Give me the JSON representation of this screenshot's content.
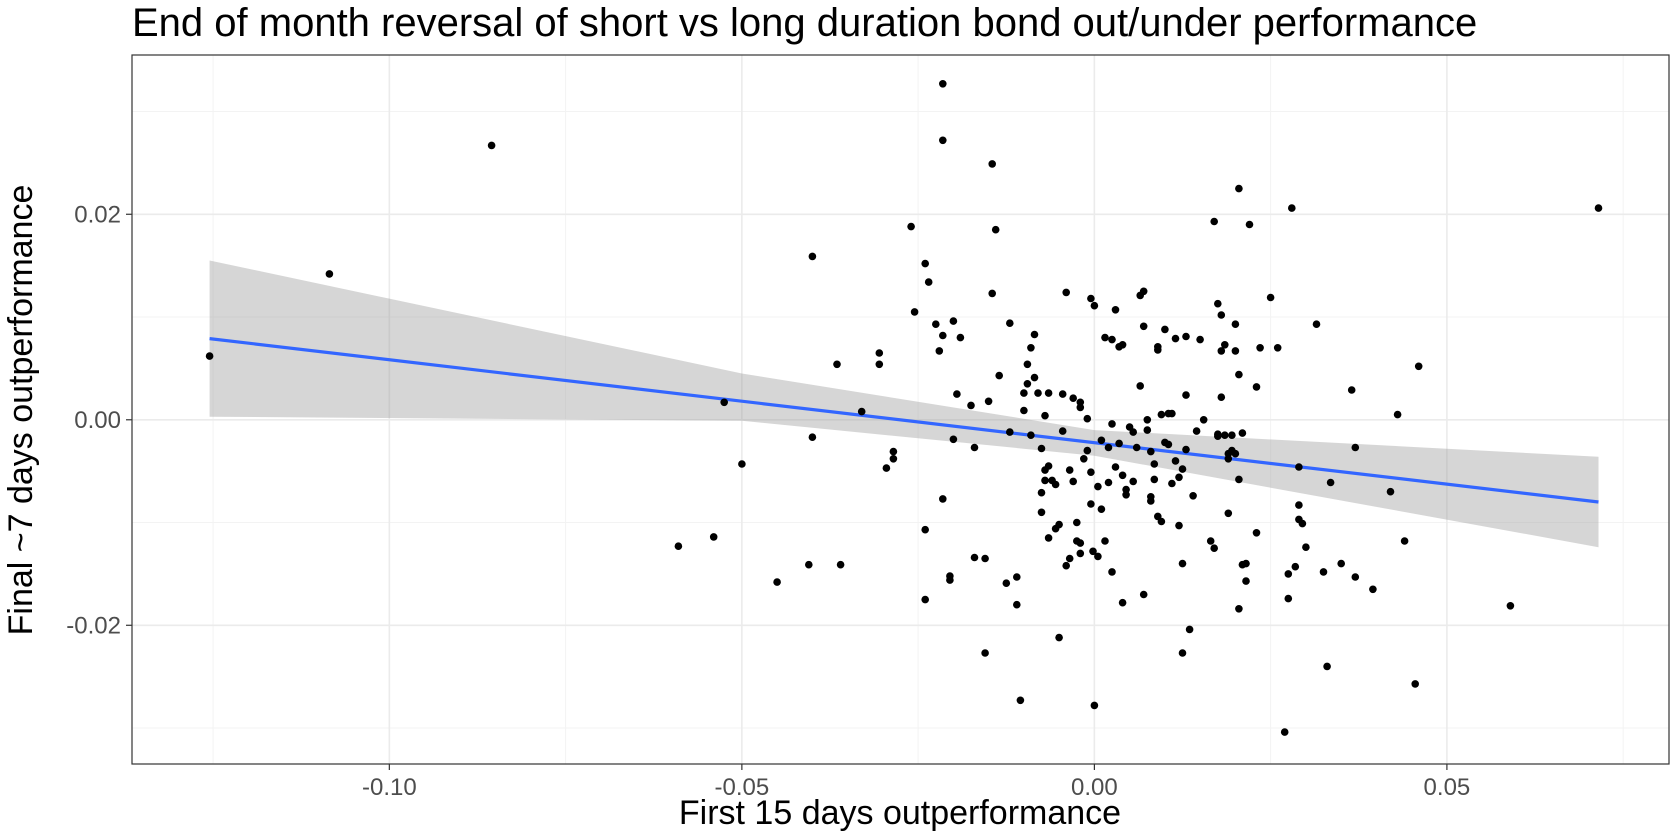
{
  "chart_data": {
    "type": "scatter",
    "title": "End of month reversal of short vs long duration bond out/under performance",
    "xlabel": "First 15 days outperformance",
    "ylabel": "Final ~7 days outperformance",
    "xlim": [
      -0.1365,
      0.0815
    ],
    "ylim": [
      -0.0335,
      0.0355
    ],
    "x_ticks": [
      -0.1,
      -0.05,
      0.0,
      0.05
    ],
    "x_tick_labels": [
      "-0.10",
      "-0.05",
      "0.00",
      "0.05"
    ],
    "x_minor_ticks": [
      -0.125,
      -0.075,
      -0.025,
      0.025,
      0.075
    ],
    "y_ticks": [
      -0.02,
      0.0,
      0.02
    ],
    "y_tick_labels": [
      "-0.02",
      "0.00",
      "0.02"
    ],
    "y_minor_ticks": [
      -0.03,
      -0.01,
      0.01,
      0.03
    ],
    "grid": true,
    "points": [
      [
        -0.1255,
        0.0062
      ],
      [
        -0.1085,
        0.0142
      ],
      [
        -0.0855,
        0.0267
      ],
      [
        -0.059,
        -0.0123
      ],
      [
        -0.054,
        -0.0114
      ],
      [
        -0.0525,
        0.0017
      ],
      [
        -0.05,
        -0.0043
      ],
      [
        -0.045,
        -0.0158
      ],
      [
        -0.04,
        0.0159
      ],
      [
        -0.04,
        -0.0017
      ],
      [
        -0.0405,
        -0.0141
      ],
      [
        -0.0365,
        0.0054
      ],
      [
        -0.036,
        -0.0141
      ],
      [
        -0.033,
        0.0008
      ],
      [
        -0.0305,
        0.0065
      ],
      [
        -0.0305,
        0.0054
      ],
      [
        -0.0295,
        -0.0047
      ],
      [
        -0.0285,
        -0.0038
      ],
      [
        -0.0285,
        -0.0031
      ],
      [
        -0.026,
        0.0188
      ],
      [
        -0.0255,
        0.0105
      ],
      [
        -0.024,
        0.0152
      ],
      [
        -0.0235,
        0.0134
      ],
      [
        -0.024,
        -0.0107
      ],
      [
        -0.024,
        -0.0175
      ],
      [
        -0.0225,
        0.0093
      ],
      [
        -0.022,
        0.0067
      ],
      [
        -0.0215,
        0.0082
      ],
      [
        -0.0215,
        0.0327
      ],
      [
        -0.0215,
        0.0272
      ],
      [
        -0.0215,
        -0.0077
      ],
      [
        -0.0205,
        -0.0152
      ],
      [
        -0.0205,
        -0.0156
      ],
      [
        -0.02,
        0.0096
      ],
      [
        -0.02,
        -0.0019
      ],
      [
        -0.0195,
        0.0025
      ],
      [
        -0.019,
        0.008
      ],
      [
        -0.0175,
        0.0014
      ],
      [
        -0.017,
        -0.0027
      ],
      [
        -0.017,
        -0.0134
      ],
      [
        -0.0155,
        -0.0227
      ],
      [
        -0.0155,
        -0.0135
      ],
      [
        -0.015,
        0.0018
      ],
      [
        -0.0145,
        0.0249
      ],
      [
        -0.0145,
        0.0123
      ],
      [
        -0.014,
        0.0185
      ],
      [
        -0.0135,
        0.0043
      ],
      [
        -0.0125,
        -0.0159
      ],
      [
        -0.012,
        -0.0012
      ],
      [
        -0.012,
        0.0094
      ],
      [
        -0.011,
        -0.018
      ],
      [
        -0.011,
        -0.0153
      ],
      [
        -0.0105,
        -0.0273
      ],
      [
        -0.01,
        0.0026
      ],
      [
        -0.01,
        0.0009
      ],
      [
        -0.0095,
        0.0054
      ],
      [
        -0.0095,
        0.0035
      ],
      [
        -0.009,
        0.007
      ],
      [
        -0.009,
        -0.0015
      ],
      [
        -0.0085,
        0.0083
      ],
      [
        -0.0085,
        0.0041
      ],
      [
        -0.008,
        0.0026
      ],
      [
        -0.0075,
        -0.0028
      ],
      [
        -0.0075,
        -0.009
      ],
      [
        -0.0075,
        -0.0071
      ],
      [
        -0.007,
        -0.0049
      ],
      [
        -0.007,
        -0.0059
      ],
      [
        -0.007,
        0.0004
      ],
      [
        -0.0065,
        -0.0045
      ],
      [
        -0.0065,
        -0.0115
      ],
      [
        -0.0065,
        0.0026
      ],
      [
        -0.006,
        -0.0059
      ],
      [
        -0.0055,
        -0.0063
      ],
      [
        -0.0055,
        -0.0106
      ],
      [
        -0.005,
        -0.0102
      ],
      [
        -0.005,
        -0.0212
      ],
      [
        -0.0045,
        -0.0011
      ],
      [
        -0.0045,
        0.0025
      ],
      [
        -0.004,
        0.0124
      ],
      [
        -0.004,
        -0.0142
      ],
      [
        -0.0035,
        -0.0135
      ],
      [
        -0.0035,
        -0.0049
      ],
      [
        -0.003,
        -0.006
      ],
      [
        -0.003,
        0.0021
      ],
      [
        -0.0025,
        -0.0118
      ],
      [
        -0.0025,
        -0.01
      ],
      [
        -0.002,
        0.0017
      ],
      [
        -0.002,
        0.0012
      ],
      [
        -0.002,
        -0.013
      ],
      [
        -0.002,
        -0.012
      ],
      [
        -0.0015,
        -0.0038
      ],
      [
        -0.001,
        -0.003
      ],
      [
        -0.001,
        0.0001
      ],
      [
        -0.0005,
        -0.0051
      ],
      [
        -0.0005,
        -0.0082
      ],
      [
        -0.0005,
        0.0118
      ],
      [
        -0.0002,
        -0.0128
      ],
      [
        0.0,
        -0.0278
      ],
      [
        0.0,
        0.0111
      ],
      [
        0.0005,
        -0.0065
      ],
      [
        0.0005,
        -0.0133
      ],
      [
        0.001,
        -0.002
      ],
      [
        0.001,
        -0.0087
      ],
      [
        0.0015,
        0.008
      ],
      [
        0.0015,
        -0.0118
      ],
      [
        0.002,
        -0.0027
      ],
      [
        0.002,
        -0.0061
      ],
      [
        0.0025,
        0.0078
      ],
      [
        0.0025,
        -0.0004
      ],
      [
        0.0025,
        -0.0148
      ],
      [
        0.003,
        0.0107
      ],
      [
        0.003,
        -0.0046
      ],
      [
        0.0035,
        0.0071
      ],
      [
        0.0035,
        -0.0023
      ],
      [
        0.004,
        0.0073
      ],
      [
        0.004,
        -0.0054
      ],
      [
        0.004,
        -0.0178
      ],
      [
        0.0045,
        -0.0068
      ],
      [
        0.0045,
        -0.0073
      ],
      [
        0.005,
        -0.0007
      ],
      [
        0.0055,
        -0.0012
      ],
      [
        0.0055,
        -0.006
      ],
      [
        0.006,
        -0.0027
      ],
      [
        0.0065,
        0.0033
      ],
      [
        0.0065,
        0.0121
      ],
      [
        0.007,
        0.0125
      ],
      [
        0.007,
        0.0091
      ],
      [
        0.007,
        -0.017
      ],
      [
        0.0075,
        0.0
      ],
      [
        0.0075,
        -0.001
      ],
      [
        0.008,
        -0.0031
      ],
      [
        0.008,
        -0.0075
      ],
      [
        0.008,
        -0.0079
      ],
      [
        0.0085,
        -0.0043
      ],
      [
        0.0085,
        -0.0058
      ],
      [
        0.009,
        0.0071
      ],
      [
        0.009,
        0.0068
      ],
      [
        0.009,
        -0.0094
      ],
      [
        0.0095,
        -0.0099
      ],
      [
        0.0095,
        0.0005
      ],
      [
        0.01,
        -0.0022
      ],
      [
        0.01,
        0.0088
      ],
      [
        0.0105,
        -0.0024
      ],
      [
        0.0105,
        0.0006
      ],
      [
        0.011,
        0.0006
      ],
      [
        0.011,
        -0.0062
      ],
      [
        0.0115,
        -0.004
      ],
      [
        0.0115,
        0.0079
      ],
      [
        0.012,
        -0.0103
      ],
      [
        0.012,
        -0.0056
      ],
      [
        0.0125,
        -0.0048
      ],
      [
        0.0125,
        -0.014
      ],
      [
        0.0125,
        -0.0227
      ],
      [
        0.013,
        0.0081
      ],
      [
        0.013,
        -0.0029
      ],
      [
        0.013,
        0.0024
      ],
      [
        0.0135,
        -0.0204
      ],
      [
        0.014,
        -0.0074
      ],
      [
        0.0145,
        -0.0011
      ],
      [
        0.015,
        0.0078
      ],
      [
        0.0155,
        0.0
      ],
      [
        0.0165,
        -0.0118
      ],
      [
        0.017,
        0.0193
      ],
      [
        0.017,
        -0.0125
      ],
      [
        0.0175,
        -0.0016
      ],
      [
        0.0175,
        -0.0014
      ],
      [
        0.0175,
        0.0113
      ],
      [
        0.018,
        0.0102
      ],
      [
        0.018,
        0.0022
      ],
      [
        0.018,
        0.0067
      ],
      [
        0.0185,
        0.0073
      ],
      [
        0.0185,
        -0.0015
      ],
      [
        0.019,
        -0.0038
      ],
      [
        0.019,
        -0.0033
      ],
      [
        0.019,
        -0.0091
      ],
      [
        0.0195,
        -0.0015
      ],
      [
        0.0195,
        -0.003
      ],
      [
        0.02,
        0.0067
      ],
      [
        0.02,
        0.0093
      ],
      [
        0.02,
        -0.0033
      ],
      [
        0.0205,
        0.0225
      ],
      [
        0.0205,
        0.0044
      ],
      [
        0.0205,
        -0.0058
      ],
      [
        0.021,
        -0.0013
      ],
      [
        0.021,
        -0.0141
      ],
      [
        0.0205,
        -0.0184
      ],
      [
        0.0215,
        -0.014
      ],
      [
        0.0215,
        -0.0157
      ],
      [
        0.022,
        0.019
      ],
      [
        0.023,
        0.0032
      ],
      [
        0.023,
        -0.011
      ],
      [
        0.0235,
        0.007
      ],
      [
        0.025,
        0.0119
      ],
      [
        0.026,
        0.007
      ],
      [
        0.027,
        -0.0304
      ],
      [
        0.0275,
        -0.0174
      ],
      [
        0.0275,
        -0.015
      ],
      [
        0.028,
        0.0206
      ],
      [
        0.0285,
        -0.0143
      ],
      [
        0.029,
        -0.0046
      ],
      [
        0.029,
        -0.0083
      ],
      [
        0.029,
        -0.0097
      ],
      [
        0.0295,
        -0.0101
      ],
      [
        0.03,
        -0.0124
      ],
      [
        0.0315,
        0.0093
      ],
      [
        0.0325,
        -0.0148
      ],
      [
        0.033,
        -0.024
      ],
      [
        0.0335,
        -0.0061
      ],
      [
        0.035,
        -0.014
      ],
      [
        0.0365,
        0.0029
      ],
      [
        0.037,
        -0.0153
      ],
      [
        0.037,
        -0.0027
      ],
      [
        0.0395,
        -0.0165
      ],
      [
        0.042,
        -0.007
      ],
      [
        0.043,
        0.0005
      ],
      [
        0.044,
        -0.0118
      ],
      [
        0.0455,
        -0.0257
      ],
      [
        0.046,
        0.0052
      ],
      [
        0.059,
        -0.0181
      ],
      [
        0.0715,
        0.0206
      ]
    ],
    "fit": {
      "method": "linear",
      "x_range": [
        -0.1255,
        0.0715
      ],
      "y_at_start": 0.0079,
      "y_at_end": -0.008
    },
    "confidence_band": {
      "x": [
        -0.1255,
        -0.05,
        0.0,
        0.0715
      ],
      "lower": [
        0.0003,
        -0.0001,
        -0.0035,
        -0.0124
      ],
      "upper": [
        0.0155,
        0.0045,
        -0.001,
        -0.0036
      ]
    },
    "colors": {
      "points": "#000000",
      "fit_line": "#3366FF",
      "band": "#999999",
      "grid": "#ebebeb",
      "panel_border": "#333333",
      "tick_label": "#4d4d4d"
    }
  }
}
